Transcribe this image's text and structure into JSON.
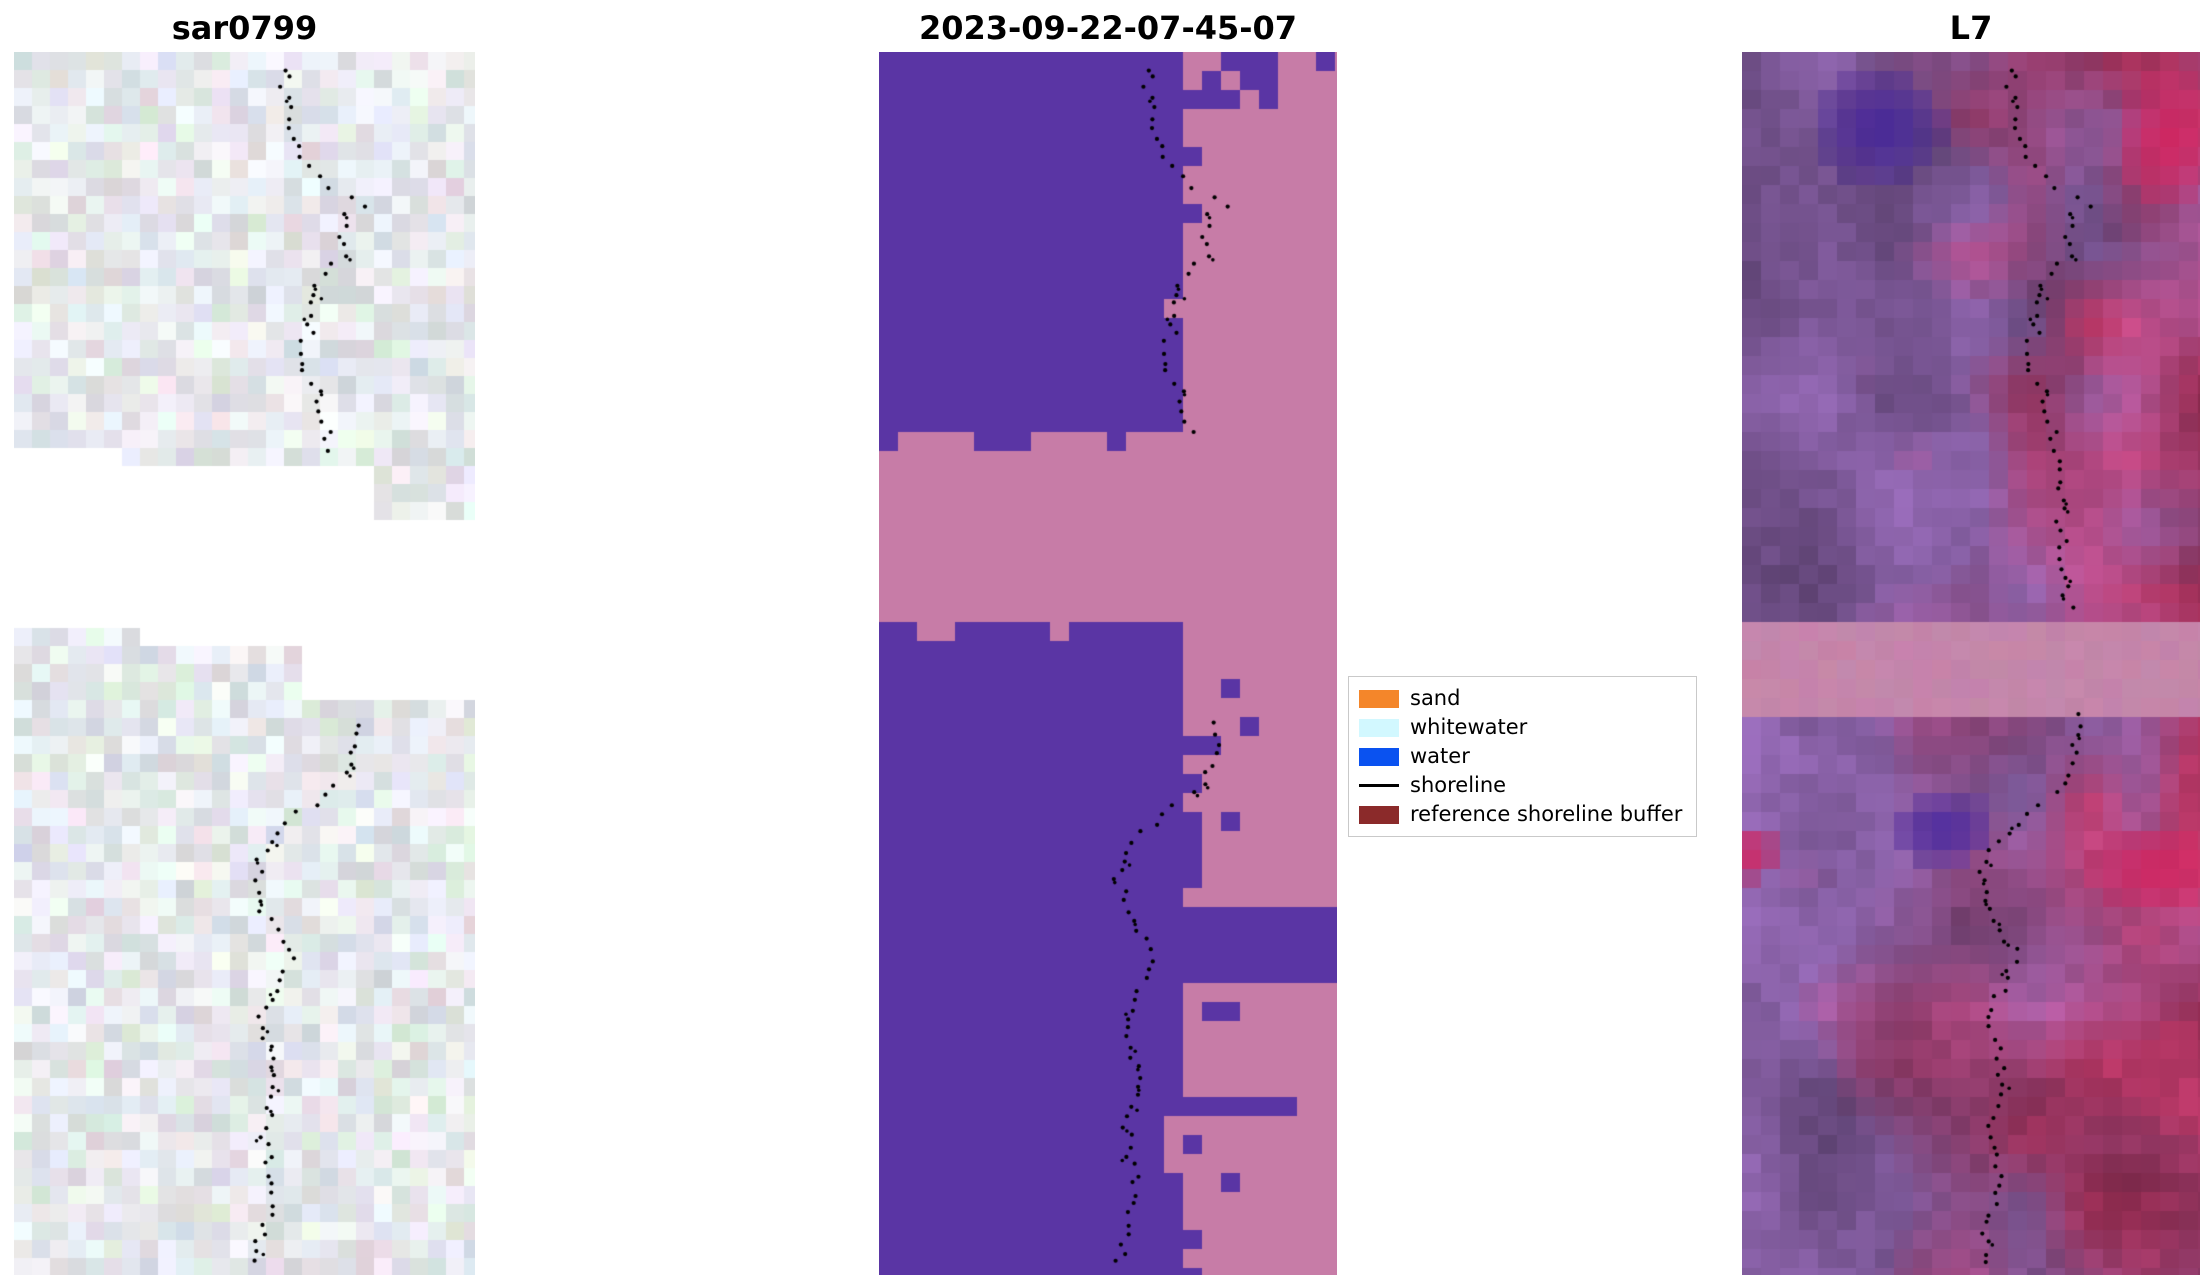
{
  "figure": {
    "background": "#ffffff",
    "panels": [
      {
        "id": "sar0799",
        "title": "sar0799",
        "type": "sar"
      },
      {
        "id": "classified",
        "title": "2023-09-22-07-45-07",
        "type": "class"
      },
      {
        "id": "l7",
        "title": "L7",
        "type": "l7"
      }
    ],
    "legend": {
      "items": [
        {
          "label": "sand",
          "color": "#f4862a",
          "shape": "patch"
        },
        {
          "label": "whitewater",
          "color": "#d2f8ff",
          "shape": "patch"
        },
        {
          "label": "water",
          "color": "#0a52f0",
          "shape": "patch"
        },
        {
          "label": "shoreline",
          "color": "#000000",
          "shape": "line"
        },
        {
          "label": "reference shoreline buffer",
          "color": "#8b2a2a",
          "shape": "patch"
        }
      ]
    },
    "chart_data": {
      "type": "heatmap",
      "description": "Satellite shoreline mapping figure: SAR image, classified image and Landsat 7 image with detected shoreline points",
      "panels": [
        {
          "title": "sar0799",
          "kind": "sar_rgb_image",
          "no_data_gap_y": [
            0.33,
            0.52
          ]
        },
        {
          "title": "2023-09-22-07-45-07",
          "kind": "classification_map",
          "masked_band_y": [
            0.316,
            0.469
          ]
        },
        {
          "title": "L7",
          "kind": "landsat7_rgb_image",
          "masked_band_y": [
            0.469,
            0.537
          ]
        }
      ],
      "colors": {
        "class_water_purple": "#5a35a4",
        "class_buffer_pink": "#c77ca7",
        "l7_purple": "#8a62a8",
        "l7_red": "#c43c6e",
        "l7_dark_purple": "#46289f",
        "l7_hot_crimson": "#d7215c",
        "l7_band_pink": "#c586ab",
        "sar_base": "#dde6ea",
        "shoreline_dot": "#000000"
      },
      "shoreline_path": [
        [
          0.0,
          0.6
        ],
        [
          0.03,
          0.59
        ],
        [
          0.06,
          0.6
        ],
        [
          0.085,
          0.625
        ],
        [
          0.105,
          0.665
        ],
        [
          0.118,
          0.73
        ],
        [
          0.125,
          0.775
        ],
        [
          0.132,
          0.72
        ],
        [
          0.15,
          0.7
        ],
        [
          0.165,
          0.72
        ],
        [
          0.185,
          0.672
        ],
        [
          0.205,
          0.635
        ],
        [
          0.23,
          0.64
        ],
        [
          0.255,
          0.618
        ],
        [
          0.275,
          0.65
        ],
        [
          0.3,
          0.675
        ],
        [
          0.316,
          0.68
        ],
        [
          0.55,
          0.738
        ],
        [
          0.575,
          0.73
        ],
        [
          0.6,
          0.7
        ],
        [
          0.625,
          0.61
        ],
        [
          0.65,
          0.553
        ],
        [
          0.675,
          0.523
        ],
        [
          0.7,
          0.54
        ],
        [
          0.72,
          0.577
        ],
        [
          0.74,
          0.6
        ],
        [
          0.76,
          0.572
        ],
        [
          0.79,
          0.54
        ],
        [
          0.82,
          0.558
        ],
        [
          0.85,
          0.572
        ],
        [
          0.88,
          0.542
        ],
        [
          0.905,
          0.55
        ],
        [
          0.935,
          0.565
        ],
        [
          0.965,
          0.535
        ],
        [
          1.0,
          0.52
        ]
      ]
    }
  }
}
